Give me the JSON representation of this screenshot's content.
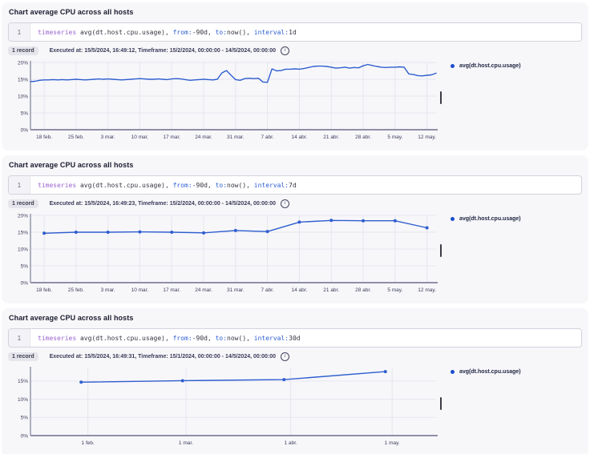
{
  "legend_label": "avg(dt.host.cpu.usage)",
  "colors": {
    "line": "#2f5ecf",
    "legend_dot": "#1d4ed0",
    "grid": "#e5e5ef",
    "axis": "#8f8fa8",
    "tick_text": "#3d3d5c",
    "keyword": "#9a63cf",
    "param": "#2e5fd3"
  },
  "sections": [
    {
      "title": "Chart average CPU across all hosts",
      "line_number": "1",
      "query_tokens": [
        {
          "text": "timeseries",
          "type": "keyword"
        },
        {
          "text": " avg(dt.host.cpu.usage), ",
          "type": "plain"
        },
        {
          "text": "from:",
          "type": "param"
        },
        {
          "text": "-90d, ",
          "type": "plain"
        },
        {
          "text": "to:",
          "type": "param"
        },
        {
          "text": "now(), ",
          "type": "plain"
        },
        {
          "text": "interval:",
          "type": "param"
        },
        {
          "text": "1d",
          "type": "plain"
        }
      ],
      "record_badge": "1 record",
      "execution_info": "Executed at: 15/5/2024, 16:49:12, Timeframe: 15/2/2024, 00:00:00 - 14/5/2024, 00:00:00",
      "legend": {
        "series_label": "avg(dt.host.cpu.usage)"
      },
      "chart_data": {
        "type": "line",
        "title": "",
        "xlabel": "",
        "ylabel": "",
        "ylim": [
          0,
          20
        ],
        "grid": true,
        "legend_position": "right",
        "yticks": [
          {
            "v": 0,
            "label": "0%"
          },
          {
            "v": 5,
            "label": "5%"
          },
          {
            "v": 10,
            "label": "10%"
          },
          {
            "v": 15,
            "label": "15%"
          },
          {
            "v": 20,
            "label": "20%"
          }
        ],
        "x_domain": [
          0,
          89
        ],
        "xticks": [
          {
            "d": 3,
            "label": "18 feb."
          },
          {
            "d": 10,
            "label": "25 feb."
          },
          {
            "d": 17,
            "label": "3 mar."
          },
          {
            "d": 24,
            "label": "10 mar."
          },
          {
            "d": 31,
            "label": "17 mar."
          },
          {
            "d": 38,
            "label": "24 mar."
          },
          {
            "d": 45,
            "label": "31 mar."
          },
          {
            "d": 52,
            "label": "7 abr."
          },
          {
            "d": 59,
            "label": "14 abr."
          },
          {
            "d": 66,
            "label": "21 abr."
          },
          {
            "d": 73,
            "label": "28 abr."
          },
          {
            "d": 80,
            "label": "5 may."
          },
          {
            "d": 87,
            "label": "12 may."
          }
        ],
        "series": [
          {
            "name": "avg(dt.host.cpu.usage)",
            "markers": false,
            "values": [
              14.3,
              14.4,
              14.7,
              14.8,
              14.8,
              14.9,
              14.8,
              14.9,
              14.8,
              14.9,
              15.0,
              14.9,
              14.8,
              14.9,
              15.0,
              15.1,
              15.0,
              15.1,
              15.0,
              14.9,
              14.8,
              14.9,
              15.0,
              15.1,
              15.2,
              15.1,
              15.0,
              15.0,
              15.1,
              15.0,
              14.9,
              15.1,
              15.2,
              15.1,
              14.9,
              14.7,
              14.8,
              14.9,
              15.0,
              14.9,
              14.8,
              15.0,
              16.9,
              17.6,
              16.2,
              14.9,
              14.7,
              15.2,
              15.3,
              15.2,
              15.3,
              14.2,
              14.1,
              18.1,
              17.5,
              17.6,
              18.0,
              18.0,
              18.1,
              18.0,
              18.2,
              18.5,
              18.8,
              18.9,
              18.9,
              18.8,
              18.6,
              18.3,
              18.4,
              18.6,
              18.3,
              18.5,
              18.4,
              19.0,
              19.4,
              19.1,
              18.8,
              18.6,
              18.5,
              18.6,
              18.6,
              18.7,
              18.6,
              16.6,
              16.4,
              16.1,
              16.0,
              16.2,
              16.3,
              16.8
            ]
          }
        ]
      }
    },
    {
      "title": "Chart average CPU across all hosts",
      "line_number": "1",
      "query_tokens": [
        {
          "text": "timeseries",
          "type": "keyword"
        },
        {
          "text": " avg(dt.host.cpu.usage), ",
          "type": "plain"
        },
        {
          "text": "from:",
          "type": "param"
        },
        {
          "text": "-90d, ",
          "type": "plain"
        },
        {
          "text": "to:",
          "type": "param"
        },
        {
          "text": "now(), ",
          "type": "plain"
        },
        {
          "text": "interval:",
          "type": "param"
        },
        {
          "text": "7d",
          "type": "plain"
        }
      ],
      "record_badge": "1 record",
      "execution_info": "Executed at: 15/5/2024, 16:49:23, Timeframe: 15/2/2024, 00:00:00 - 14/5/2024, 00:00:00",
      "legend": {
        "series_label": "avg(dt.host.cpu.usage)"
      },
      "chart_data": {
        "type": "line",
        "title": "",
        "xlabel": "",
        "ylabel": "",
        "ylim": [
          0,
          20
        ],
        "grid": true,
        "legend_position": "right",
        "yticks": [
          {
            "v": 0,
            "label": "0%"
          },
          {
            "v": 5,
            "label": "5%"
          },
          {
            "v": 10,
            "label": "10%"
          },
          {
            "v": 15,
            "label": "15%"
          },
          {
            "v": 20,
            "label": "20%"
          }
        ],
        "x_domain": [
          0,
          89
        ],
        "xticks": [
          {
            "d": 3,
            "label": "18 feb."
          },
          {
            "d": 10,
            "label": "25 feb."
          },
          {
            "d": 17,
            "label": "3 mar."
          },
          {
            "d": 24,
            "label": "10 mar."
          },
          {
            "d": 31,
            "label": "17 mar."
          },
          {
            "d": 38,
            "label": "24 mar."
          },
          {
            "d": 45,
            "label": "31 mar."
          },
          {
            "d": 52,
            "label": "7 abr."
          },
          {
            "d": 59,
            "label": "14 abr."
          },
          {
            "d": 66,
            "label": "21 abr."
          },
          {
            "d": 73,
            "label": "28 abr."
          },
          {
            "d": 80,
            "label": "5 may."
          },
          {
            "d": 87,
            "label": "12 may."
          }
        ],
        "series": [
          {
            "name": "avg(dt.host.cpu.usage)",
            "markers": true,
            "x_days": [
              3,
              10,
              17,
              24,
              31,
              38,
              45,
              52,
              59,
              66,
              73,
              80,
              87
            ],
            "values": [
              14.7,
              15.0,
              15.0,
              15.1,
              15.0,
              14.8,
              15.5,
              15.2,
              18.0,
              18.5,
              18.4,
              18.4,
              16.3
            ]
          }
        ]
      }
    },
    {
      "title": "Chart average CPU across all hosts",
      "line_number": "1",
      "query_tokens": [
        {
          "text": "timeseries",
          "type": "keyword"
        },
        {
          "text": " avg(dt.host.cpu.usage), ",
          "type": "plain"
        },
        {
          "text": "from:",
          "type": "param"
        },
        {
          "text": "-90d, ",
          "type": "plain"
        },
        {
          "text": "to:",
          "type": "param"
        },
        {
          "text": "now(), ",
          "type": "plain"
        },
        {
          "text": "interval:",
          "type": "param"
        },
        {
          "text": "30d",
          "type": "plain"
        }
      ],
      "record_badge": "1 record",
      "execution_info": "Executed at: 15/5/2024, 16:49:31, Timeframe: 15/1/2024, 00:00:00 - 14/5/2024, 00:00:00",
      "legend": {
        "series_label": "avg(dt.host.cpu.usage)"
      },
      "chart_data": {
        "type": "line",
        "title": "",
        "xlabel": "",
        "ylabel": "",
        "ylim": [
          0,
          18.5
        ],
        "grid": true,
        "legend_position": "right",
        "yticks": [
          {
            "v": 0,
            "label": "0%"
          },
          {
            "v": 5,
            "label": "5%"
          },
          {
            "v": 10,
            "label": "10%"
          },
          {
            "v": 15,
            "label": "15%"
          }
        ],
        "x_domain": [
          0,
          120
        ],
        "xticks": [
          {
            "d": 17,
            "label": "1 feb."
          },
          {
            "d": 46,
            "label": "1 mar."
          },
          {
            "d": 77,
            "label": "1 abr."
          },
          {
            "d": 107,
            "label": "1 may."
          }
        ],
        "series": [
          {
            "name": "avg(dt.host.cpu.usage)",
            "markers": true,
            "x_days": [
              15,
              45,
              75,
              105
            ],
            "values": [
              14.7,
              15.1,
              15.4,
              17.6
            ]
          }
        ]
      }
    }
  ]
}
